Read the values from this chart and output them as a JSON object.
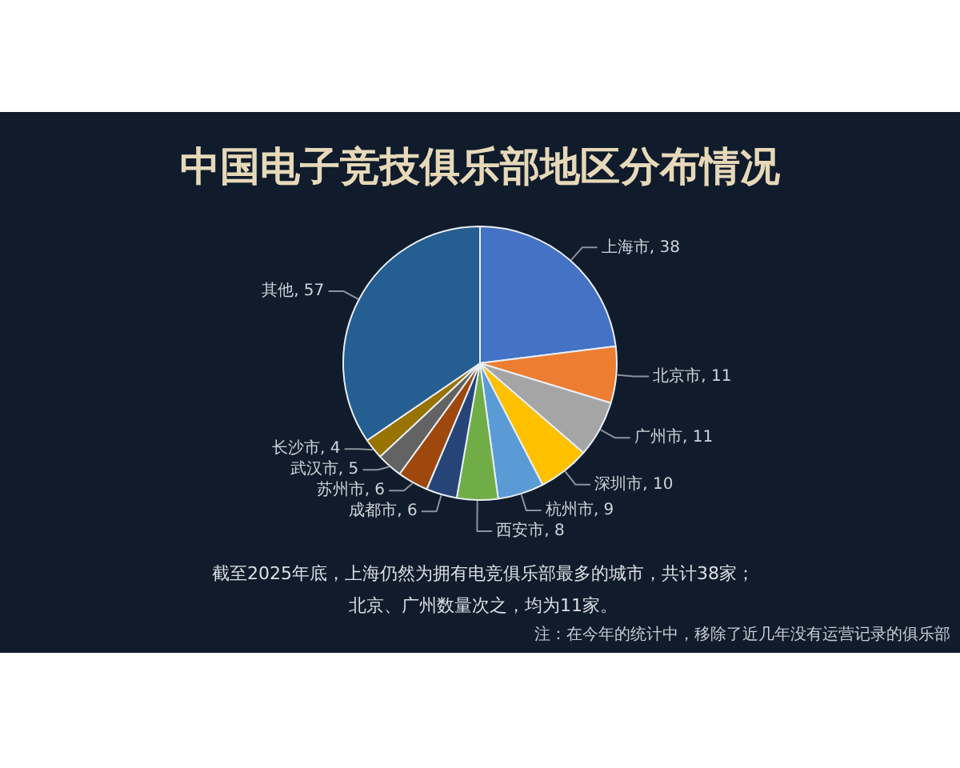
{
  "chart_data": {
    "type": "pie",
    "title": "中国电子竞技俱乐部地区分布情况",
    "categories": [
      "上海市",
      "北京市",
      "广州市",
      "深圳市",
      "杭州市",
      "西安市",
      "成都市",
      "苏州市",
      "武汉市",
      "长沙市",
      "其他"
    ],
    "values": [
      38,
      11,
      11,
      10,
      9,
      8,
      6,
      6,
      5,
      4,
      57
    ],
    "value_labels": [
      ", 38",
      ", 11",
      ", 11",
      ", 10",
      ", 9",
      ", 8",
      ", 6",
      ", 6",
      ", 5",
      ", 4",
      ", 57"
    ],
    "colors": [
      "#4472c4",
      "#ed7d31",
      "#a5a5a5",
      "#ffc000",
      "#5b9bd5",
      "#70ad47",
      "#264478",
      "#9e480e",
      "#636363",
      "#997300",
      "#255e91"
    ],
    "annotations": [
      "截至2025年底，上海仍然为拥有电竞俱乐部最多的城市，共计38家；",
      "北京、广州数量次之，均为11家。",
      "注：在今年的统计中，移除了近几年没有运营记录的俱乐部"
    ]
  }
}
